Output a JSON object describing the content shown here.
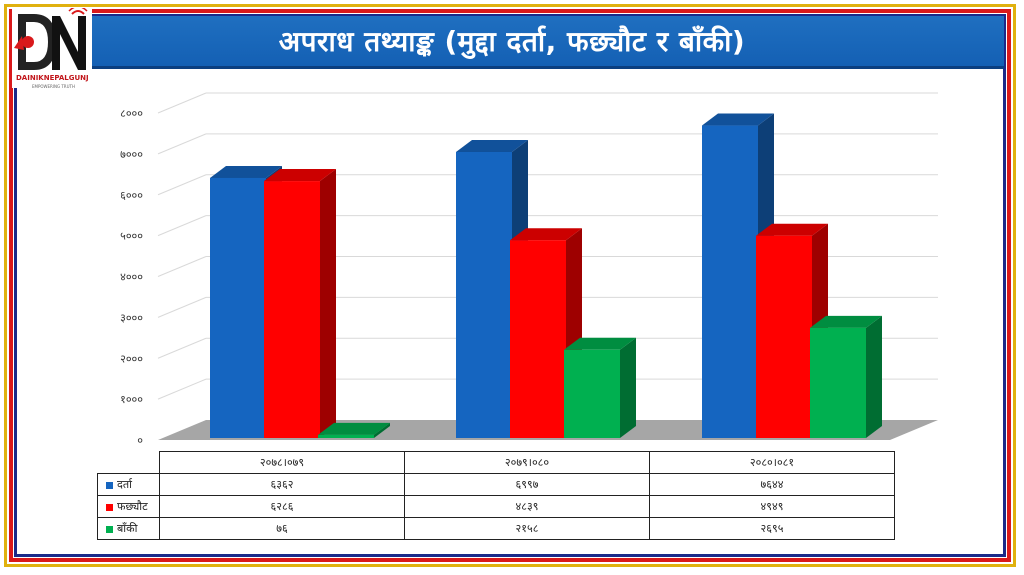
{
  "header": {
    "title": "अपराध तथ्याङ्क (मुद्दा दर्ता, फछ्यौट र बाँकी)",
    "logo_text": "DAINIKNEPALGUNJ",
    "logo_tagline": "EMPOWERING TRUTH",
    "title_bg": "#1565c0"
  },
  "chart_data": {
    "type": "bar",
    "subtype": "3d-clustered-column",
    "categories": [
      "२०७८।०७९",
      "२०७९।०८०",
      "२०८०।०८१"
    ],
    "series": [
      {
        "name": "दर्ता",
        "values": [
          6362,
          6997,
          7644
        ],
        "display": [
          "६३६२",
          "६९९७",
          "७६४४"
        ],
        "color": "#1565c0"
      },
      {
        "name": "फछ्यौट",
        "values": [
          6286,
          4839,
          4949
        ],
        "display": [
          "६२८६",
          "४८३९",
          "४९४९"
        ],
        "color": "#ff0000"
      },
      {
        "name": "बाँकी",
        "values": [
          76,
          2158,
          2695
        ],
        "display": [
          "७६",
          "२१५८",
          "२६९५"
        ],
        "color": "#00b050"
      }
    ],
    "yticks": [
      "०",
      "१०००",
      "२०००",
      "३०००",
      "४०००",
      "५०००",
      "६०००",
      "७०००",
      "८०००"
    ],
    "ylim": [
      0,
      8000
    ],
    "grid": true,
    "legend": "data-table-below"
  }
}
